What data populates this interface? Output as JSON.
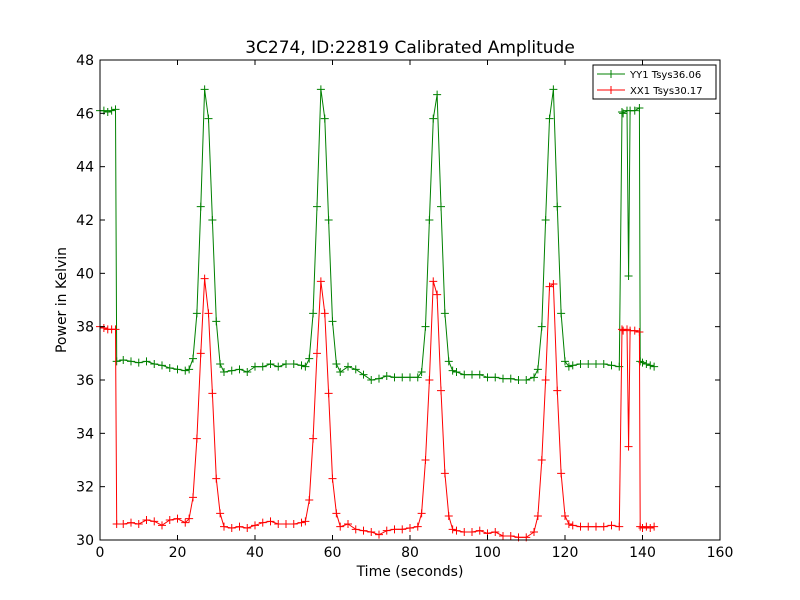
{
  "chart_data": {
    "type": "line",
    "title": "3C274, ID:22819 Calibrated Amplitude",
    "xlabel": "Time (seconds)",
    "ylabel": "Power in Kelvin",
    "xlim": [
      0,
      160
    ],
    "ylim": [
      30,
      48
    ],
    "xticks": [
      0,
      20,
      40,
      60,
      80,
      100,
      120,
      140,
      160
    ],
    "yticks": [
      30,
      32,
      34,
      36,
      38,
      40,
      42,
      44,
      46,
      48
    ],
    "grid": false,
    "legend_position": "top-right",
    "marker": "plus",
    "series": [
      {
        "name": "YY1 Tsys36.06",
        "color": "#008000",
        "points": [
          [
            0,
            46.1
          ],
          [
            1,
            46.1
          ],
          [
            2,
            46.05
          ],
          [
            3,
            46.1
          ],
          [
            4,
            46.15
          ],
          [
            4.3,
            36.7
          ],
          [
            6,
            36.75
          ],
          [
            8,
            36.7
          ],
          [
            10,
            36.65
          ],
          [
            12,
            36.7
          ],
          [
            14,
            36.6
          ],
          [
            16,
            36.55
          ],
          [
            18,
            36.45
          ],
          [
            20,
            36.4
          ],
          [
            22,
            36.35
          ],
          [
            23,
            36.4
          ],
          [
            24,
            36.8
          ],
          [
            25,
            38.5
          ],
          [
            26,
            42.5
          ],
          [
            27,
            46.9
          ],
          [
            28,
            45.8
          ],
          [
            29,
            42
          ],
          [
            30,
            38.2
          ],
          [
            31,
            36.6
          ],
          [
            32,
            36.3
          ],
          [
            34,
            36.35
          ],
          [
            36,
            36.4
          ],
          [
            38,
            36.3
          ],
          [
            40,
            36.5
          ],
          [
            42,
            36.5
          ],
          [
            44,
            36.6
          ],
          [
            46,
            36.5
          ],
          [
            48,
            36.6
          ],
          [
            50,
            36.6
          ],
          [
            52,
            36.55
          ],
          [
            53,
            36.5
          ],
          [
            54,
            36.8
          ],
          [
            55,
            38.5
          ],
          [
            56,
            42.5
          ],
          [
            57,
            46.9
          ],
          [
            58,
            45.8
          ],
          [
            59,
            42
          ],
          [
            60,
            38.2
          ],
          [
            61,
            36.6
          ],
          [
            62,
            36.3
          ],
          [
            64,
            36.5
          ],
          [
            66,
            36.4
          ],
          [
            68,
            36.2
          ],
          [
            70,
            36
          ],
          [
            72,
            36.05
          ],
          [
            74,
            36.15
          ],
          [
            76,
            36.1
          ],
          [
            78,
            36.1
          ],
          [
            80,
            36.1
          ],
          [
            82,
            36.1
          ],
          [
            83,
            36.3
          ],
          [
            84,
            38
          ],
          [
            85,
            42
          ],
          [
            86,
            45.8
          ],
          [
            87,
            46.7
          ],
          [
            88,
            42.5
          ],
          [
            89,
            38.5
          ],
          [
            90,
            36.7
          ],
          [
            91,
            36.35
          ],
          [
            92,
            36.3
          ],
          [
            94,
            36.2
          ],
          [
            96,
            36.2
          ],
          [
            98,
            36.2
          ],
          [
            100,
            36.1
          ],
          [
            102,
            36.1
          ],
          [
            104,
            36.05
          ],
          [
            106,
            36.05
          ],
          [
            108,
            36
          ],
          [
            110,
            36
          ],
          [
            112,
            36.1
          ],
          [
            113,
            36.4
          ],
          [
            114,
            38
          ],
          [
            115,
            42
          ],
          [
            116,
            45.8
          ],
          [
            117,
            46.9
          ],
          [
            118,
            42.5
          ],
          [
            119,
            38.5
          ],
          [
            120,
            36.7
          ],
          [
            121,
            36.5
          ],
          [
            122,
            36.55
          ],
          [
            124,
            36.6
          ],
          [
            126,
            36.6
          ],
          [
            128,
            36.6
          ],
          [
            130,
            36.6
          ],
          [
            132,
            36.55
          ],
          [
            134,
            36.5
          ],
          [
            134.7,
            46.05
          ],
          [
            135,
            46
          ],
          [
            136,
            46.1
          ],
          [
            136.4,
            39.9
          ],
          [
            136.8,
            46.1
          ],
          [
            138,
            46.1
          ],
          [
            139.2,
            46.2
          ],
          [
            139.4,
            36.7
          ],
          [
            140,
            36.65
          ],
          [
            141,
            36.6
          ],
          [
            142,
            36.55
          ],
          [
            143,
            36.5
          ]
        ]
      },
      {
        "name": "XX1 Tsys30.17",
        "color": "#ff0000",
        "points": [
          [
            0,
            38
          ],
          [
            1,
            37.95
          ],
          [
            2,
            37.9
          ],
          [
            3,
            37.9
          ],
          [
            4,
            37.9
          ],
          [
            4.3,
            30.6
          ],
          [
            6,
            30.6
          ],
          [
            8,
            30.65
          ],
          [
            10,
            30.6
          ],
          [
            12,
            30.75
          ],
          [
            14,
            30.7
          ],
          [
            16,
            30.55
          ],
          [
            18,
            30.75
          ],
          [
            20,
            30.8
          ],
          [
            22,
            30.65
          ],
          [
            23,
            30.8
          ],
          [
            24,
            31.6
          ],
          [
            25,
            33.8
          ],
          [
            26,
            37
          ],
          [
            27,
            39.8
          ],
          [
            28,
            38.5
          ],
          [
            29,
            35.5
          ],
          [
            30,
            32.3
          ],
          [
            31,
            31
          ],
          [
            32,
            30.5
          ],
          [
            34,
            30.45
          ],
          [
            36,
            30.5
          ],
          [
            38,
            30.45
          ],
          [
            40,
            30.55
          ],
          [
            42,
            30.65
          ],
          [
            44,
            30.7
          ],
          [
            46,
            30.6
          ],
          [
            48,
            30.6
          ],
          [
            50,
            30.6
          ],
          [
            52,
            30.65
          ],
          [
            53,
            30.7
          ],
          [
            54,
            31.5
          ],
          [
            55,
            33.8
          ],
          [
            56,
            37
          ],
          [
            57,
            39.7
          ],
          [
            58,
            38.5
          ],
          [
            59,
            35.5
          ],
          [
            60,
            32.3
          ],
          [
            61,
            31
          ],
          [
            62,
            30.5
          ],
          [
            64,
            30.6
          ],
          [
            66,
            30.4
          ],
          [
            68,
            30.35
          ],
          [
            70,
            30.3
          ],
          [
            72,
            30.2
          ],
          [
            74,
            30.35
          ],
          [
            76,
            30.4
          ],
          [
            78,
            30.4
          ],
          [
            80,
            30.45
          ],
          [
            82,
            30.5
          ],
          [
            83,
            31
          ],
          [
            84,
            33
          ],
          [
            85,
            36
          ],
          [
            86,
            39.7
          ],
          [
            87,
            39.2
          ],
          [
            88,
            35.6
          ],
          [
            89,
            32.5
          ],
          [
            90,
            30.9
          ],
          [
            91,
            30.4
          ],
          [
            92,
            30.35
          ],
          [
            94,
            30.3
          ],
          [
            96,
            30.3
          ],
          [
            98,
            30.35
          ],
          [
            100,
            30.25
          ],
          [
            102,
            30.3
          ],
          [
            104,
            30.15
          ],
          [
            106,
            30.15
          ],
          [
            108,
            30.1
          ],
          [
            110,
            30.1
          ],
          [
            112,
            30.3
          ],
          [
            113,
            30.9
          ],
          [
            114,
            33
          ],
          [
            115,
            36
          ],
          [
            116,
            39.5
          ],
          [
            117,
            39.6
          ],
          [
            118,
            35.6
          ],
          [
            119,
            32.5
          ],
          [
            120,
            30.9
          ],
          [
            121,
            30.6
          ],
          [
            122,
            30.55
          ],
          [
            124,
            30.5
          ],
          [
            126,
            30.5
          ],
          [
            128,
            30.5
          ],
          [
            130,
            30.5
          ],
          [
            132,
            30.55
          ],
          [
            134,
            30.5
          ],
          [
            134.7,
            37.9
          ],
          [
            135,
            37.85
          ],
          [
            136,
            37.9
          ],
          [
            136.4,
            33.5
          ],
          [
            136.8,
            37.85
          ],
          [
            138,
            37.85
          ],
          [
            139.2,
            37.8
          ],
          [
            139.4,
            30.5
          ],
          [
            140,
            30.45
          ],
          [
            141,
            30.5
          ],
          [
            142,
            30.45
          ],
          [
            143,
            30.5
          ]
        ]
      }
    ]
  }
}
